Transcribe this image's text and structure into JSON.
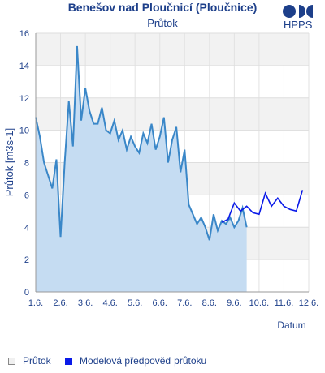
{
  "brand": {
    "name": "HPPS"
  },
  "chart_data": {
    "type": "area",
    "title": "Benešov nad Ploučnicí (Ploučnice)",
    "subtitle": "Průtok",
    "xlabel": "Datum",
    "ylabel": "Průtok [m3s-1]",
    "ylim": [
      0,
      16
    ],
    "yticks": [
      0,
      2,
      4,
      6,
      8,
      10,
      12,
      14,
      16
    ],
    "xlim": [
      "2024-06-01",
      "2024-06-12"
    ],
    "xticks": [
      "1.6.",
      "2.6.",
      "3.6.",
      "4.6.",
      "5.6.",
      "6.6.",
      "7.6.",
      "8.6.",
      "9.6.",
      "10.6.",
      "11.6.",
      "12.6."
    ],
    "grid": true,
    "legend_position": "bottom-left",
    "series": [
      {
        "name": "Průtok",
        "color": "#3a87c8",
        "fill": "#c5dcf2",
        "x": [
          "2024-06-01 00:00",
          "2024-06-01 04:00",
          "2024-06-01 08:00",
          "2024-06-01 12:00",
          "2024-06-01 16:00",
          "2024-06-01 20:00",
          "2024-06-02 00:00",
          "2024-06-02 04:00",
          "2024-06-02 08:00",
          "2024-06-02 12:00",
          "2024-06-02 16:00",
          "2024-06-02 20:00",
          "2024-06-03 00:00",
          "2024-06-03 04:00",
          "2024-06-03 08:00",
          "2024-06-03 12:00",
          "2024-06-03 16:00",
          "2024-06-03 20:00",
          "2024-06-04 00:00",
          "2024-06-04 04:00",
          "2024-06-04 08:00",
          "2024-06-04 12:00",
          "2024-06-04 16:00",
          "2024-06-04 20:00",
          "2024-06-05 00:00",
          "2024-06-05 04:00",
          "2024-06-05 08:00",
          "2024-06-05 12:00",
          "2024-06-05 16:00",
          "2024-06-05 20:00",
          "2024-06-06 00:00",
          "2024-06-06 04:00",
          "2024-06-06 08:00",
          "2024-06-06 12:00",
          "2024-06-06 16:00",
          "2024-06-06 20:00",
          "2024-06-07 00:00",
          "2024-06-07 04:00",
          "2024-06-07 08:00",
          "2024-06-07 12:00",
          "2024-06-07 16:00",
          "2024-06-07 20:00",
          "2024-06-08 00:00",
          "2024-06-08 04:00",
          "2024-06-08 08:00",
          "2024-06-08 12:00",
          "2024-06-08 16:00",
          "2024-06-08 20:00",
          "2024-06-09 00:00",
          "2024-06-09 04:00",
          "2024-06-09 08:00",
          "2024-06-09 12:00"
        ],
        "values": [
          10.8,
          9.6,
          8.0,
          7.2,
          6.4,
          8.2,
          3.4,
          8.0,
          11.8,
          9.0,
          15.2,
          10.6,
          12.6,
          11.2,
          10.4,
          10.4,
          11.4,
          10.0,
          9.8,
          10.6,
          9.4,
          10.0,
          8.8,
          9.6,
          9.0,
          8.6,
          9.8,
          9.2,
          10.4,
          8.8,
          9.6,
          10.8,
          8.0,
          9.4,
          10.2,
          7.4,
          8.8,
          5.4,
          4.8,
          4.2,
          4.6,
          4.0,
          3.2,
          4.8,
          3.8,
          4.4,
          4.2,
          4.6,
          4.0,
          4.4,
          5.2,
          4.0
        ]
      },
      {
        "name": "Modelová předpověď průtoku",
        "color": "#0a1ae8",
        "x": [
          "2024-06-08 12:00",
          "2024-06-08 18:00",
          "2024-06-09 00:00",
          "2024-06-09 06:00",
          "2024-06-09 12:00",
          "2024-06-09 18:00",
          "2024-06-10 00:00",
          "2024-06-10 06:00",
          "2024-06-10 12:00",
          "2024-06-10 18:00",
          "2024-06-11 00:00",
          "2024-06-11 06:00",
          "2024-06-11 12:00",
          "2024-06-11 18:00"
        ],
        "values": [
          4.3,
          4.5,
          5.5,
          5.0,
          5.3,
          4.9,
          4.8,
          6.1,
          5.3,
          5.8,
          5.3,
          5.1,
          5.0,
          6.3
        ]
      }
    ]
  }
}
